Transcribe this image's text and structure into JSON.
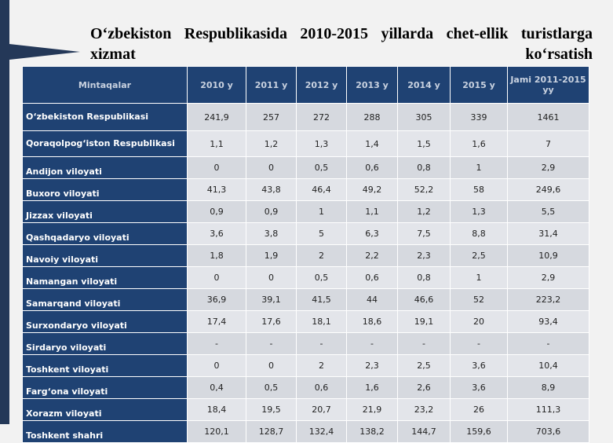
{
  "title": "O‘zbekiston Respublikasida 2010-2015 yillarda chet-ellik turistlarga xizmat ko‘rsatish",
  "table": {
    "columns": [
      "Mintaqalar",
      "2010 y",
      "2011 y",
      "2012 y",
      "2013 y",
      "2014 y",
      "2015 y",
      "Jami 2011-2015 yy"
    ],
    "rows": [
      [
        "O‘zbekiston Respublikasi",
        "241,9",
        "257",
        "272",
        "288",
        "305",
        "339",
        "1461"
      ],
      [
        "Qoraqolpog‘iston Respublikasi",
        "1,1",
        "1,2",
        "1,3",
        "1,4",
        "1,5",
        "1,6",
        "7"
      ],
      [
        "Andijon viloyati",
        "0",
        "0",
        "0,5",
        "0,6",
        "0,8",
        "1",
        "2,9"
      ],
      [
        "Buxoro viloyati",
        "41,3",
        "43,8",
        "46,4",
        "49,2",
        "52,2",
        "58",
        "249,6"
      ],
      [
        "Jizzax viloyati",
        "0,9",
        "0,9",
        "1",
        "1,1",
        "1,2",
        "1,3",
        "5,5"
      ],
      [
        "Qashqadaryo viloyati",
        "3,6",
        "3,8",
        "5",
        "6,3",
        "7,5",
        "8,8",
        "31,4"
      ],
      [
        "Navoiy viloyati",
        "1,8",
        "1,9",
        "2",
        "2,2",
        "2,3",
        "2,5",
        "10,9"
      ],
      [
        "Namangan viloyati",
        "0",
        "0",
        "0,5",
        "0,6",
        "0,8",
        "1",
        "2,9"
      ],
      [
        "Samarqand viloyati",
        "36,9",
        "39,1",
        "41,5",
        "44",
        "46,6",
        "52",
        "223,2"
      ],
      [
        "Surxondaryo viloyati",
        "17,4",
        "17,6",
        "18,1",
        "18,6",
        "19,1",
        "20",
        "93,4"
      ],
      [
        "Sirdaryo viloyati",
        "-",
        "-",
        "-",
        "-",
        "-",
        "-",
        "-"
      ],
      [
        "Toshkent viloyati",
        "0",
        "0",
        "2",
        "2,3",
        "2,5",
        "3,6",
        "10,4"
      ],
      [
        "Farg‘ona viloyati",
        "0,4",
        "0,5",
        "0,6",
        "1,6",
        "2,6",
        "3,6",
        "8,9"
      ],
      [
        "Xorazm viloyati",
        "18,4",
        "19,5",
        "20,7",
        "21,9",
        "23,2",
        "26",
        "111,3"
      ],
      [
        "Toshkent shahri",
        "120,1",
        "128,7",
        "132,4",
        "138,2",
        "144,7",
        "159,6",
        "703,6"
      ]
    ]
  }
}
